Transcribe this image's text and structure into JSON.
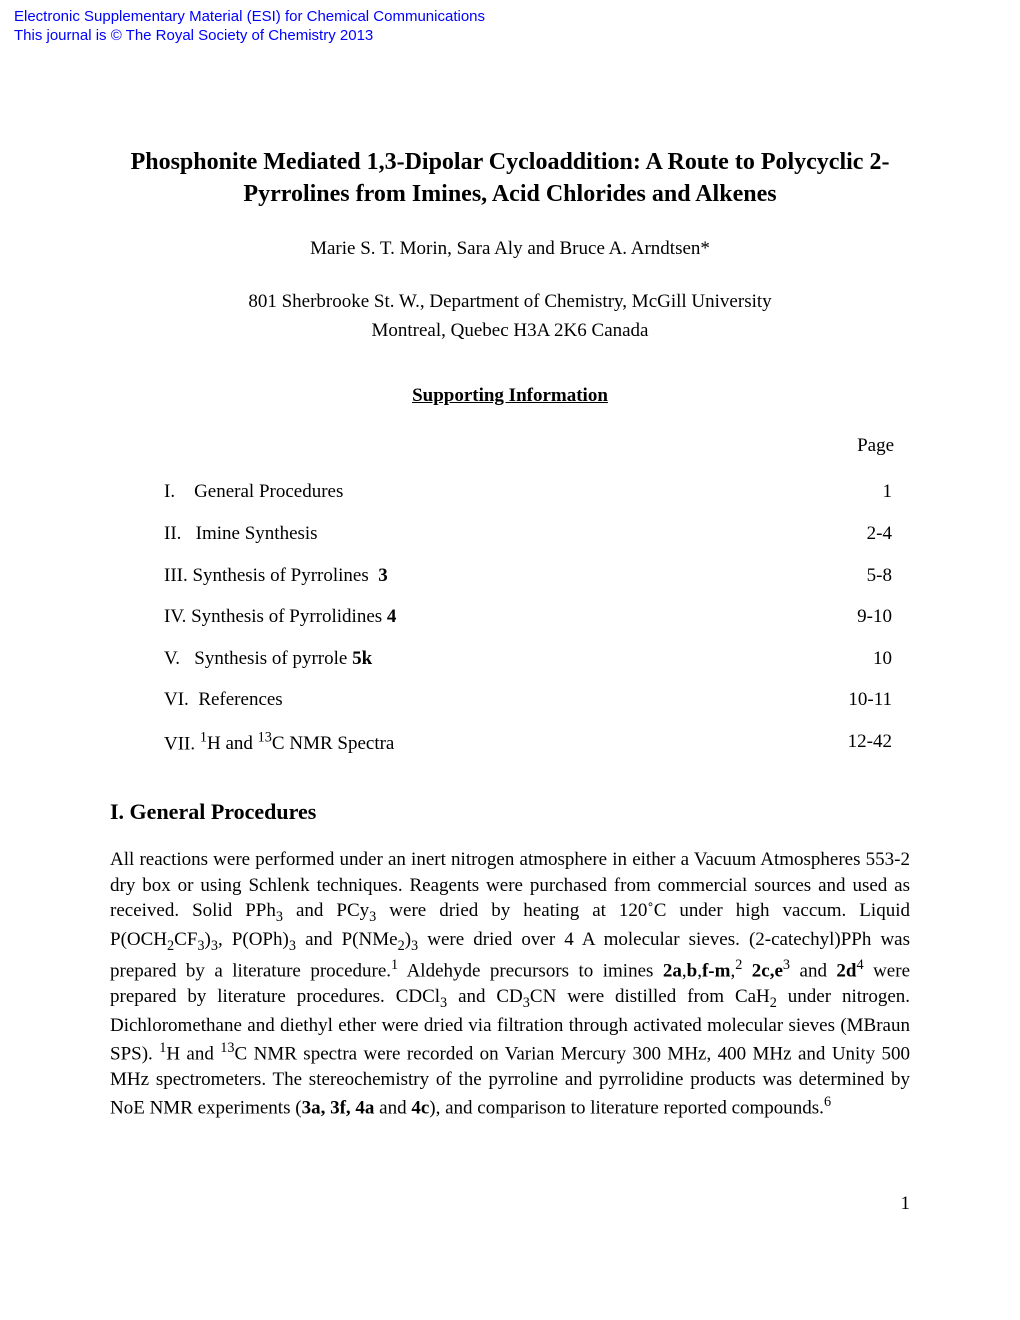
{
  "esi": {
    "line1": "Electronic Supplementary Material (ESI) for Chemical Communications",
    "line2": "This journal is © The Royal Society of Chemistry 2013"
  },
  "title": "Phosphonite Mediated 1,3-Dipolar Cycloaddition: A Route to Polycyclic 2-Pyrrolines from Imines, Acid Chlorides and Alkenes",
  "authors": "Marie S. T. Morin, Sara Aly and Bruce A. Arndtsen*",
  "affiliation_line1": "801 Sherbrooke St. W., Department of Chemistry, McGill University",
  "affiliation_line2": "Montreal, Quebec H3A 2K6 Canada",
  "si_heading": "Supporting Information",
  "toc_page_label": "Page",
  "toc": [
    {
      "num": "I.",
      "label": "General Procedures",
      "page": "1"
    },
    {
      "num": "II.",
      "label": "Imine Synthesis",
      "page": "2-4"
    },
    {
      "num": "III.",
      "label_html": "Synthesis of Pyrrolines  <b>3</b>",
      "page": "5-8"
    },
    {
      "num": "IV.",
      "label_html": "Synthesis of Pyrrolidines <b>4</b>",
      "page": "9-10"
    },
    {
      "num": "V.",
      "label_html": "Synthesis of pyrrole <b>5k</b>",
      "page": "10"
    },
    {
      "num": "VI.",
      "label": "References",
      "page": "10-11"
    },
    {
      "num": "VII.",
      "label_html": "<sup>1</sup>H and <sup>13</sup>C NMR Spectra",
      "page": "12-42"
    }
  ],
  "section1_heading": "I. General Procedures",
  "body_html": "All reactions were performed under an inert nitrogen atmosphere in either a Vacuum Atmospheres 553-2 dry box or using Schlenk techniques. Reagents were purchased from commercial sources and used as received. Solid PPh<sub>3</sub> and PCy<sub>3</sub> were dried by heating at 120˚C under high vaccum. Liquid P(OCH<sub>2</sub>CF<sub>3</sub>)<sub>3</sub>, P(OPh)<sub>3</sub> and P(NMe<sub>2</sub>)<sub>3</sub> were dried over 4 A molecular sieves. (2-catechyl)PPh was prepared by a literature procedure.<sup>1</sup> Aldehyde precursors to imines <b>2a</b>,<b>b</b>,<b>f-m</b>,<sup>2</sup> <b>2c,e</b><sup>3</sup> and <b>2d</b><sup>4</sup> were prepared by literature procedures. CDCl<sub>3</sub> and CD<sub>3</sub>CN were distilled from CaH<sub>2</sub> under nitrogen. Dichloromethane and diethyl ether were dried via filtration through activated molecular sieves (MBraun SPS).  <sup>1</sup>H and <sup>13</sup>C NMR spectra were recorded on Varian Mercury 300 MHz, 400 MHz and Unity 500 MHz spectrometers. The stereochemistry of the pyrroline and pyrrolidine products was determined by NoE NMR experiments (<b>3a, 3f, 4a</b> and <b>4c</b>), and comparison to literature reported compounds.<sup>6</sup>",
  "page_number": "1",
  "colors": {
    "link_blue": "#0000ff",
    "text": "#000000",
    "background": "#ffffff"
  },
  "typography": {
    "body_family": "Times New Roman",
    "header_family": "Arial",
    "title_pt": 18,
    "body_pt": 14
  }
}
